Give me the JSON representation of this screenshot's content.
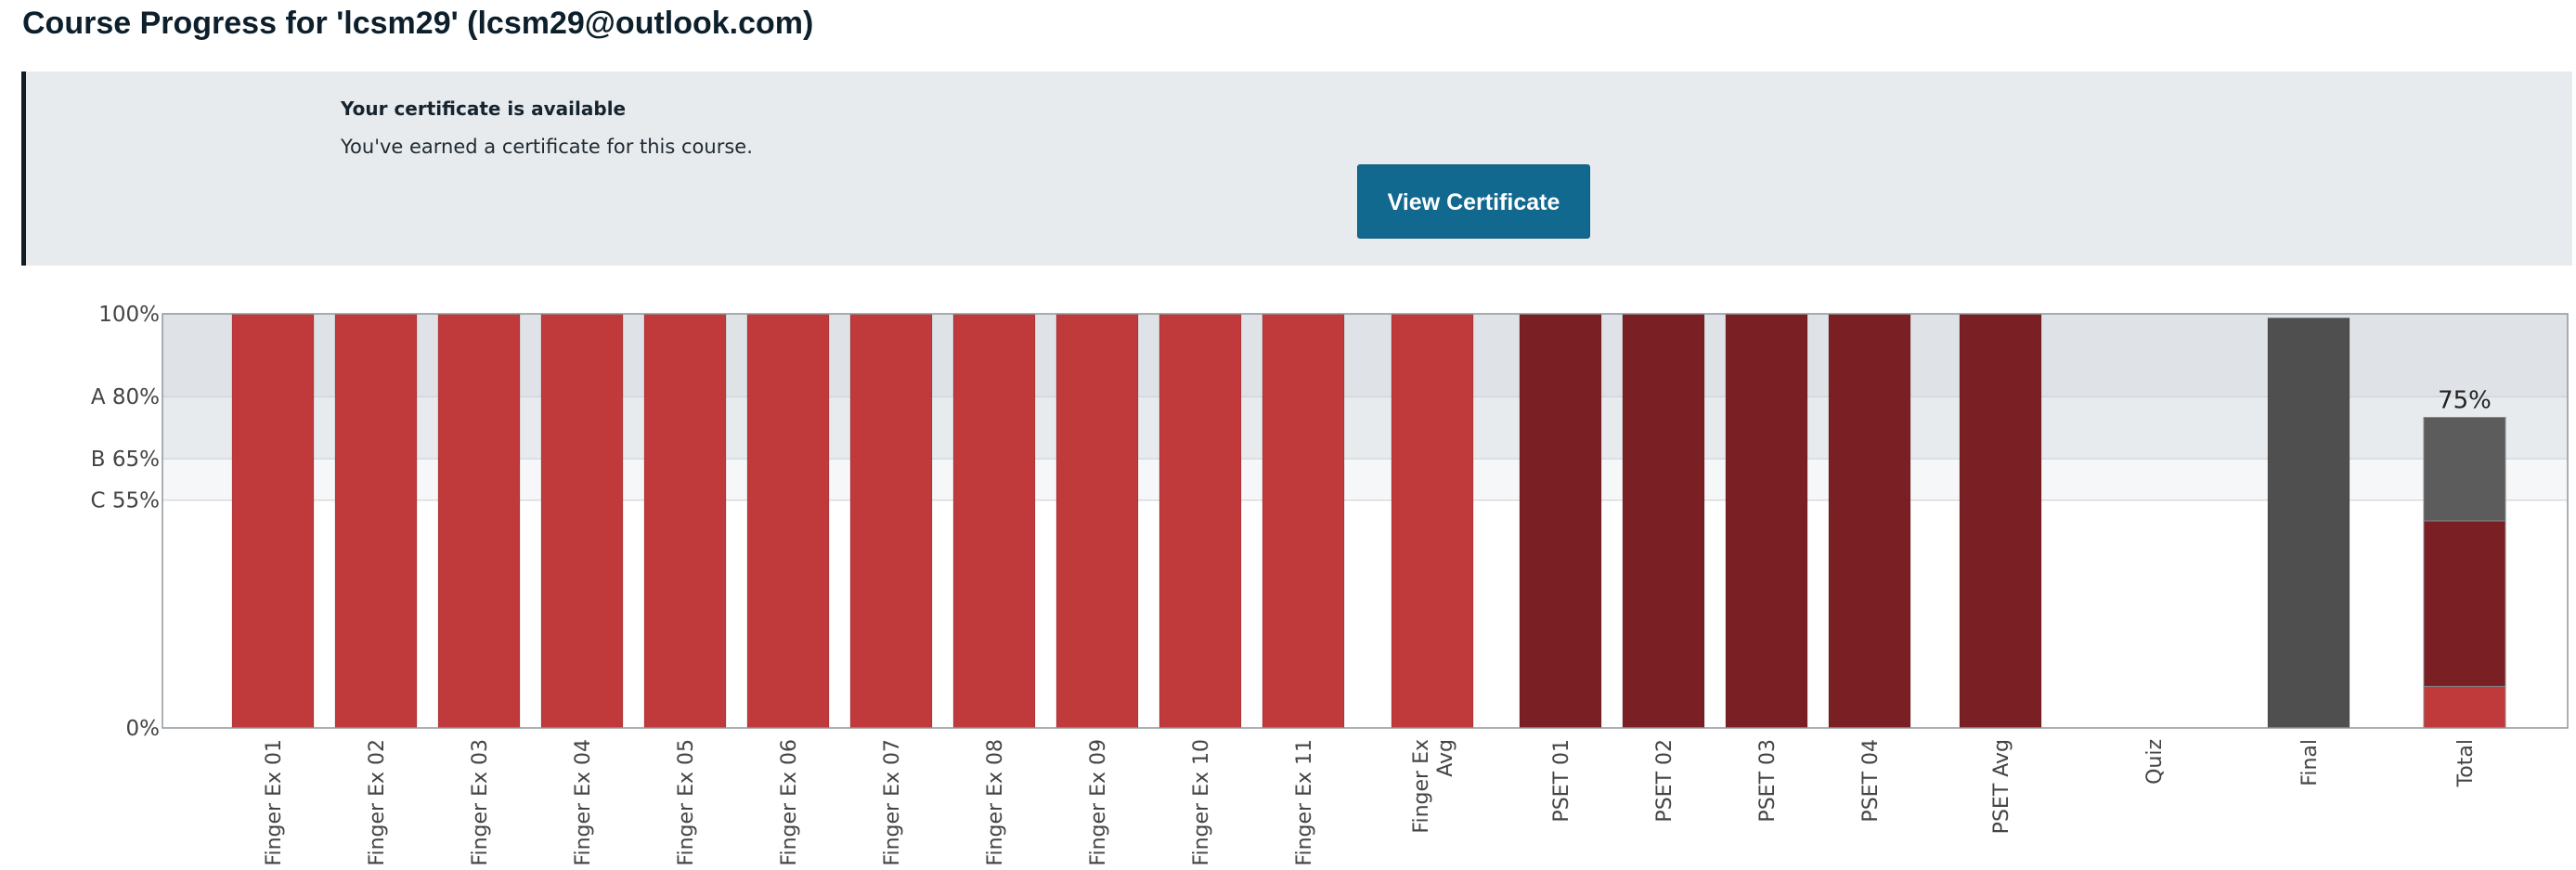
{
  "header": {
    "title": "Course Progress for 'lcsm29' (lcsm29@outlook.com)"
  },
  "certificate_banner": {
    "heading": "Your certificate is available",
    "message": "You've earned a certificate for this course.",
    "button_label": "View Certificate",
    "button_color": "#12698f"
  },
  "chart_data": {
    "type": "bar",
    "title": "",
    "xlabel": "",
    "ylabel": "",
    "ylim": [
      0,
      100
    ],
    "y_ticks": [
      {
        "value": 0,
        "label": "0%"
      },
      {
        "value": 55,
        "label": "C 55%"
      },
      {
        "value": 65,
        "label": "B 65%"
      },
      {
        "value": 80,
        "label": "A 80%"
      },
      {
        "value": 100,
        "label": "100%"
      }
    ],
    "grade_bands": [
      {
        "label": "A",
        "from": 80,
        "to": 100,
        "color": "#dfe2e6"
      },
      {
        "label": "B",
        "from": 65,
        "to": 80,
        "color": "#e8ebee"
      },
      {
        "label": "C",
        "from": 55,
        "to": 65,
        "color": "#f6f7f8"
      }
    ],
    "categories": [
      "Finger Ex 01",
      "Finger Ex 02",
      "Finger Ex 03",
      "Finger Ex 04",
      "Finger Ex 05",
      "Finger Ex 06",
      "Finger Ex 07",
      "Finger Ex 08",
      "Finger Ex 09",
      "Finger Ex 10",
      "Finger Ex 11",
      "Finger Ex Avg",
      "PSET 01",
      "PSET 02",
      "PSET 03",
      "PSET 04",
      "PSET Avg",
      "Quiz",
      "Final",
      "Total"
    ],
    "values": [
      100,
      100,
      100,
      100,
      100,
      100,
      100,
      100,
      100,
      100,
      100,
      100,
      100,
      100,
      100,
      100,
      100,
      0,
      99,
      75
    ],
    "colors": {
      "finger_ex": "#c0393b",
      "pset": "#7a2024",
      "final": "#4f4f4f",
      "total_top": "#5c5c5c"
    },
    "total_breakdown": [
      {
        "series": "Finger Ex",
        "value": 10,
        "color": "#c0393b"
      },
      {
        "series": "PSET",
        "value": 40,
        "color": "#7a2024"
      },
      {
        "series": "Final",
        "value": 25,
        "color": "#5c5c5c"
      }
    ],
    "total_label": "75%"
  }
}
